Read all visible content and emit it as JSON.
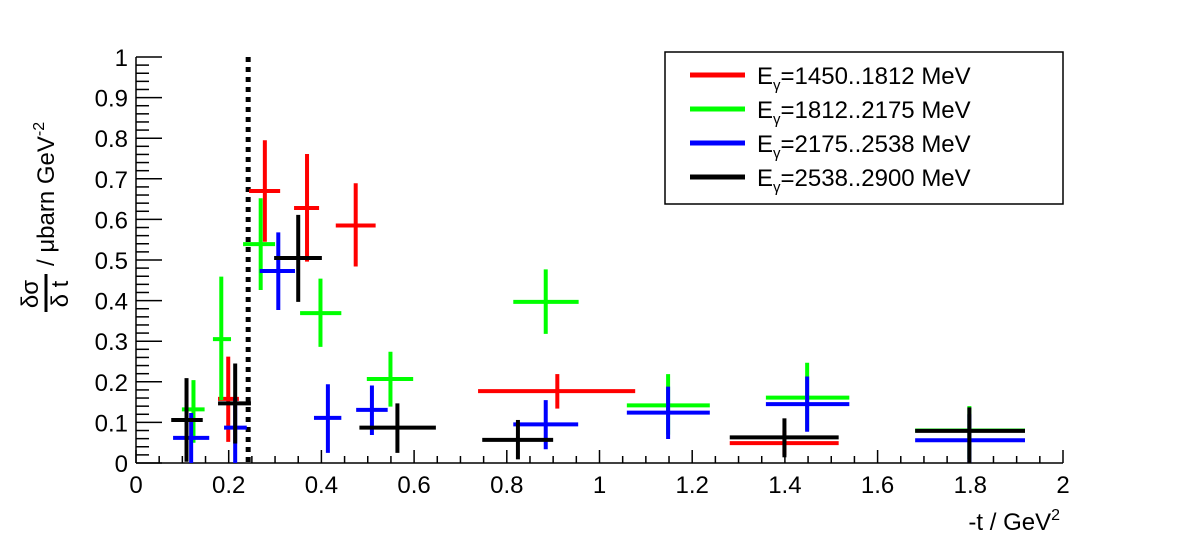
{
  "chart_data": {
    "type": "scatter",
    "title": "",
    "xlabel": "-t / GeV",
    "xlabel_sup": "2",
    "ylabel_frac_num": "δσ",
    "ylabel_frac_den": "δ t",
    "ylabel": "/  μbarn GeV",
    "ylabel_sup": "-2",
    "xlim": [
      0,
      2
    ],
    "ylim": [
      0,
      1
    ],
    "x_ticks": [
      "0",
      "0.2",
      "0.4",
      "0.6",
      "0.8",
      "1",
      "1.2",
      "1.4",
      "1.6",
      "1.8",
      "2"
    ],
    "y_ticks": [
      "0",
      "0.1",
      "0.2",
      "0.3",
      "0.4",
      "0.5",
      "0.6",
      "0.7",
      "0.8",
      "0.9",
      "1"
    ],
    "grid": false,
    "legend_position": "top-right",
    "vertical_line": {
      "x": 0.242,
      "style": "dotted",
      "color": "#000000"
    },
    "series": [
      {
        "name_base": "E",
        "name_sub": "γ",
        "name_rest": "=1450..1812 MeV",
        "color": "#ff0000",
        "points": [
          {
            "x": 0.199,
            "y": 0.158,
            "xlo": 0.177,
            "xhi": 0.222,
            "ylo": 0.052,
            "yhi": 0.262
          },
          {
            "x": 0.278,
            "y": 0.67,
            "xlo": 0.244,
            "xhi": 0.311,
            "ylo": 0.545,
            "yhi": 0.795
          },
          {
            "x": 0.369,
            "y": 0.628,
            "xlo": 0.341,
            "xhi": 0.395,
            "ylo": 0.496,
            "yhi": 0.761
          },
          {
            "x": 0.474,
            "y": 0.585,
            "xlo": 0.431,
            "xhi": 0.517,
            "ylo": 0.484,
            "yhi": 0.689
          },
          {
            "x": 0.909,
            "y": 0.177,
            "xlo": 0.738,
            "xhi": 1.077,
            "ylo": 0.134,
            "yhi": 0.219
          },
          {
            "x": 1.399,
            "y": 0.049,
            "xlo": 1.281,
            "xhi": 1.516,
            "ylo": 0.02,
            "yhi": 0.08
          }
        ]
      },
      {
        "name_base": "E",
        "name_sub": "γ",
        "name_rest": "=1812..2175 MeV",
        "color": "#00ff00",
        "points": [
          {
            "x": 0.124,
            "y": 0.132,
            "xlo": 0.099,
            "xhi": 0.148,
            "ylo": 0.05,
            "yhi": 0.204
          },
          {
            "x": 0.184,
            "y": 0.305,
            "xlo": 0.166,
            "xhi": 0.205,
            "ylo": 0.155,
            "yhi": 0.459
          },
          {
            "x": 0.269,
            "y": 0.539,
            "xlo": 0.231,
            "xhi": 0.3,
            "ylo": 0.426,
            "yhi": 0.652
          },
          {
            "x": 0.398,
            "y": 0.369,
            "xlo": 0.354,
            "xhi": 0.443,
            "ylo": 0.286,
            "yhi": 0.454
          },
          {
            "x": 0.549,
            "y": 0.207,
            "xlo": 0.498,
            "xhi": 0.598,
            "ylo": 0.139,
            "yhi": 0.274
          },
          {
            "x": 0.884,
            "y": 0.397,
            "xlo": 0.814,
            "xhi": 0.955,
            "ylo": 0.318,
            "yhi": 0.477
          },
          {
            "x": 1.148,
            "y": 0.142,
            "xlo": 1.059,
            "xhi": 1.238,
            "ylo": 0.07,
            "yhi": 0.219
          },
          {
            "x": 1.448,
            "y": 0.161,
            "xlo": 1.359,
            "xhi": 1.539,
            "ylo": 0.08,
            "yhi": 0.247
          },
          {
            "x": 1.798,
            "y": 0.08,
            "xlo": 1.681,
            "xhi": 1.918,
            "ylo": 0.01,
            "yhi": 0.14
          }
        ]
      },
      {
        "name_base": "E",
        "name_sub": "γ",
        "name_rest": "=2175..2538 MeV",
        "color": "#0000ff",
        "points": [
          {
            "x": 0.119,
            "y": 0.062,
            "xlo": 0.08,
            "xhi": 0.158,
            "ylo": 0.0,
            "yhi": 0.123
          },
          {
            "x": 0.214,
            "y": 0.087,
            "xlo": 0.19,
            "xhi": 0.239,
            "ylo": 0.0,
            "yhi": 0.16
          },
          {
            "x": 0.307,
            "y": 0.473,
            "xlo": 0.267,
            "xhi": 0.343,
            "ylo": 0.377,
            "yhi": 0.568
          },
          {
            "x": 0.414,
            "y": 0.111,
            "xlo": 0.384,
            "xhi": 0.443,
            "ylo": 0.025,
            "yhi": 0.194
          },
          {
            "x": 0.509,
            "y": 0.131,
            "xlo": 0.475,
            "xhi": 0.543,
            "ylo": 0.069,
            "yhi": 0.191
          },
          {
            "x": 0.884,
            "y": 0.095,
            "xlo": 0.814,
            "xhi": 0.954,
            "ylo": 0.034,
            "yhi": 0.155
          },
          {
            "x": 1.148,
            "y": 0.124,
            "xlo": 1.059,
            "xhi": 1.238,
            "ylo": 0.059,
            "yhi": 0.188
          },
          {
            "x": 1.448,
            "y": 0.145,
            "xlo": 1.359,
            "xhi": 1.539,
            "ylo": 0.077,
            "yhi": 0.213
          },
          {
            "x": 1.798,
            "y": 0.056,
            "xlo": 1.681,
            "xhi": 1.918,
            "ylo": 0.0,
            "yhi": 0.12
          }
        ]
      },
      {
        "name_base": "E",
        "name_sub": "γ",
        "name_rest": "=2538..2900 MeV",
        "color": "#000000",
        "points": [
          {
            "x": 0.109,
            "y": 0.106,
            "xlo": 0.076,
            "xhi": 0.144,
            "ylo": 0.003,
            "yhi": 0.209
          },
          {
            "x": 0.214,
            "y": 0.147,
            "xlo": 0.177,
            "xhi": 0.248,
            "ylo": 0.048,
            "yhi": 0.245
          },
          {
            "x": 0.35,
            "y": 0.505,
            "xlo": 0.298,
            "xhi": 0.401,
            "ylo": 0.397,
            "yhi": 0.611
          },
          {
            "x": 0.564,
            "y": 0.087,
            "xlo": 0.482,
            "xhi": 0.647,
            "ylo": 0.025,
            "yhi": 0.147
          },
          {
            "x": 0.824,
            "y": 0.057,
            "xlo": 0.747,
            "xhi": 0.9,
            "ylo": 0.009,
            "yhi": 0.106
          },
          {
            "x": 1.399,
            "y": 0.063,
            "xlo": 1.281,
            "xhi": 1.516,
            "ylo": 0.014,
            "yhi": 0.11
          },
          {
            "x": 1.798,
            "y": 0.079,
            "xlo": 1.681,
            "xhi": 1.918,
            "ylo": 0.0,
            "yhi": 0.137
          }
        ]
      }
    ]
  }
}
